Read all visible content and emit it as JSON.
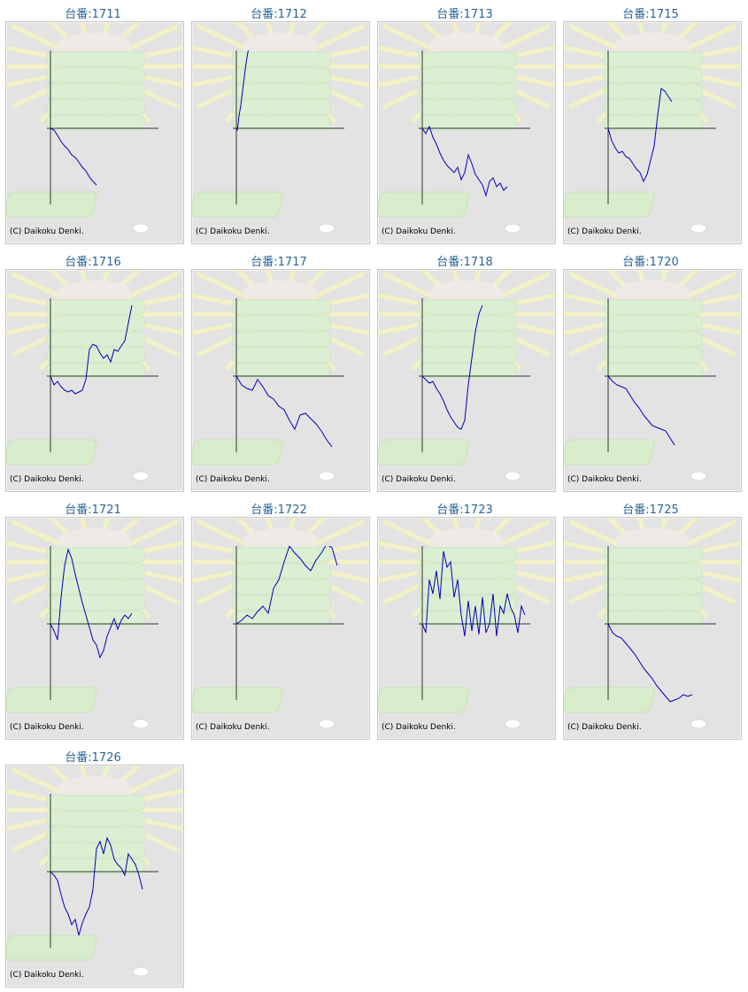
{
  "colors": {
    "title": "#2a6496",
    "line": "#0000bb",
    "axis": "#333333",
    "panel": "#e3e3e3"
  },
  "chart_data": [
    {
      "type": "line",
      "title": "台番:1711",
      "copyright": "(C) Daikoku Denki.",
      "x": [
        0,
        4,
        8,
        12,
        16,
        20,
        24,
        28,
        32,
        36,
        40,
        44,
        48,
        52
      ],
      "values": [
        0,
        -2,
        -8,
        -15,
        -20,
        -24,
        -30,
        -33,
        -38,
        -44,
        -48,
        -55,
        -60,
        -64
      ]
    },
    {
      "type": "line",
      "title": "台番:1712",
      "copyright": "(C) Daikoku Denki.",
      "x": [
        0,
        1,
        2,
        3,
        4,
        5,
        6,
        7,
        8,
        9,
        10,
        11,
        12,
        13,
        14
      ],
      "values": [
        0,
        -2,
        5,
        14,
        20,
        26,
        34,
        42,
        50,
        58,
        66,
        74,
        80,
        86,
        90
      ]
    },
    {
      "type": "line",
      "title": "台番:1713",
      "copyright": "(C) Daikoku Denki.",
      "x": [
        0,
        4,
        8,
        12,
        16,
        20,
        24,
        28,
        32,
        36,
        40,
        44,
        48,
        52,
        56,
        60,
        64,
        68,
        72,
        76,
        80,
        84,
        88,
        92,
        96
      ],
      "values": [
        0,
        -6,
        2,
        -10,
        -18,
        -28,
        -36,
        -42,
        -46,
        -50,
        -44,
        -58,
        -50,
        -30,
        -40,
        -52,
        -58,
        -64,
        -76,
        -60,
        -56,
        -66,
        -62,
        -70,
        -66
      ]
    },
    {
      "type": "line",
      "title": "台番:1715",
      "copyright": "(C) Daikoku Denki.",
      "x": [
        0,
        4,
        8,
        12,
        16,
        20,
        24,
        28,
        32,
        36,
        40,
        44,
        48,
        52,
        56,
        60,
        64,
        68,
        72
      ],
      "values": [
        0,
        -14,
        -22,
        -28,
        -26,
        -32,
        -34,
        -40,
        -46,
        -50,
        -60,
        -52,
        -36,
        -20,
        15,
        45,
        42,
        36,
        30
      ]
    },
    {
      "type": "line",
      "title": "台番:1716",
      "copyright": "(C) Daikoku Denki.",
      "x": [
        0,
        4,
        8,
        12,
        16,
        20,
        24,
        28,
        32,
        36,
        40,
        44,
        48,
        52,
        56,
        60,
        64,
        68,
        72,
        76,
        80,
        84,
        88,
        92
      ],
      "values": [
        0,
        -10,
        -6,
        -12,
        -16,
        -18,
        -16,
        -20,
        -18,
        -16,
        -4,
        30,
        36,
        34,
        26,
        20,
        24,
        16,
        30,
        28,
        34,
        40,
        60,
        80
      ]
    },
    {
      "type": "line",
      "title": "台番:1717",
      "copyright": "(C) Daikoku Denki.",
      "x": [
        0,
        6,
        12,
        18,
        24,
        30,
        36,
        42,
        48,
        54,
        60,
        66,
        72,
        78,
        84,
        90,
        96,
        102,
        108
      ],
      "values": [
        0,
        -10,
        -14,
        -16,
        -4,
        -12,
        -22,
        -26,
        -34,
        -38,
        -50,
        -60,
        -44,
        -42,
        -48,
        -54,
        -62,
        -72,
        -80
      ]
    },
    {
      "type": "line",
      "title": "台番:1718",
      "copyright": "(C) Daikoku Denki.",
      "x": [
        0,
        4,
        8,
        12,
        16,
        20,
        24,
        28,
        32,
        36,
        40,
        44,
        48,
        52,
        56,
        60,
        64,
        68
      ],
      "values": [
        0,
        -4,
        -8,
        -6,
        -14,
        -20,
        -28,
        -38,
        -46,
        -52,
        -58,
        -60,
        -50,
        -10,
        20,
        50,
        70,
        80
      ]
    },
    {
      "type": "line",
      "title": "台番:1720",
      "copyright": "(C) Daikoku Denki.",
      "x": [
        0,
        5,
        10,
        15,
        20,
        25,
        30,
        35,
        40,
        45,
        50,
        55,
        60,
        65,
        70,
        75
      ],
      "values": [
        0,
        -6,
        -10,
        -12,
        -14,
        -22,
        -30,
        -36,
        -44,
        -50,
        -56,
        -58,
        -60,
        -62,
        -70,
        -78
      ]
    },
    {
      "type": "line",
      "title": "台番:1721",
      "copyright": "(C) Daikoku Denki.",
      "x": [
        0,
        4,
        8,
        12,
        16,
        20,
        24,
        28,
        32,
        36,
        40,
        44,
        48,
        52,
        56,
        60,
        64,
        68,
        72,
        76,
        80,
        84,
        88,
        92
      ],
      "values": [
        0,
        -8,
        -18,
        30,
        66,
        84,
        74,
        56,
        40,
        24,
        10,
        -4,
        -18,
        -24,
        -38,
        -30,
        -14,
        -4,
        6,
        -6,
        4,
        10,
        6,
        12
      ]
    },
    {
      "type": "line",
      "title": "台番:1722",
      "copyright": "(C) Daikoku Denki.",
      "x": [
        0,
        6,
        12,
        18,
        24,
        30,
        36,
        42,
        48,
        54,
        60,
        66,
        72,
        78,
        84,
        90,
        96,
        102,
        108,
        114
      ],
      "values": [
        0,
        4,
        10,
        6,
        14,
        20,
        12,
        40,
        50,
        70,
        88,
        80,
        74,
        66,
        60,
        72,
        80,
        90,
        86,
        66
      ]
    },
    {
      "type": "line",
      "title": "台番:1723",
      "copyright": "(C) Daikoku Denki.",
      "x": [
        0,
        4,
        8,
        12,
        16,
        20,
        24,
        28,
        32,
        36,
        40,
        44,
        48,
        52,
        56,
        60,
        64,
        68,
        72,
        76,
        80,
        84,
        88,
        92,
        96,
        100,
        104,
        108,
        112,
        116
      ],
      "values": [
        0,
        -10,
        50,
        34,
        60,
        28,
        82,
        64,
        70,
        30,
        50,
        10,
        -14,
        26,
        -8,
        20,
        -12,
        30,
        -10,
        0,
        34,
        -14,
        20,
        12,
        34,
        18,
        10,
        -10,
        20,
        10
      ]
    },
    {
      "type": "line",
      "title": "台番:1725",
      "copyright": "(C) Daikoku Denki.",
      "x": [
        0,
        5,
        10,
        15,
        20,
        25,
        30,
        35,
        40,
        45,
        50,
        55,
        60,
        65,
        70,
        75,
        80,
        85,
        90,
        95
      ],
      "values": [
        0,
        -10,
        -14,
        -16,
        -22,
        -28,
        -34,
        -42,
        -50,
        -56,
        -62,
        -70,
        -76,
        -82,
        -88,
        -86,
        -84,
        -80,
        -82,
        -80
      ]
    },
    {
      "type": "line",
      "title": "台番:1726",
      "copyright": "(C) Daikoku Denki.",
      "x": [
        0,
        4,
        8,
        12,
        16,
        20,
        24,
        28,
        32,
        36,
        40,
        44,
        48,
        52,
        56,
        60,
        64,
        68,
        72,
        76,
        80,
        84,
        88,
        92,
        96,
        100,
        104
      ],
      "values": [
        0,
        -4,
        -10,
        -26,
        -40,
        -48,
        -60,
        -54,
        -72,
        -58,
        -48,
        -40,
        -20,
        26,
        34,
        20,
        38,
        30,
        14,
        8,
        4,
        -4,
        20,
        14,
        8,
        -4,
        -20
      ]
    }
  ]
}
